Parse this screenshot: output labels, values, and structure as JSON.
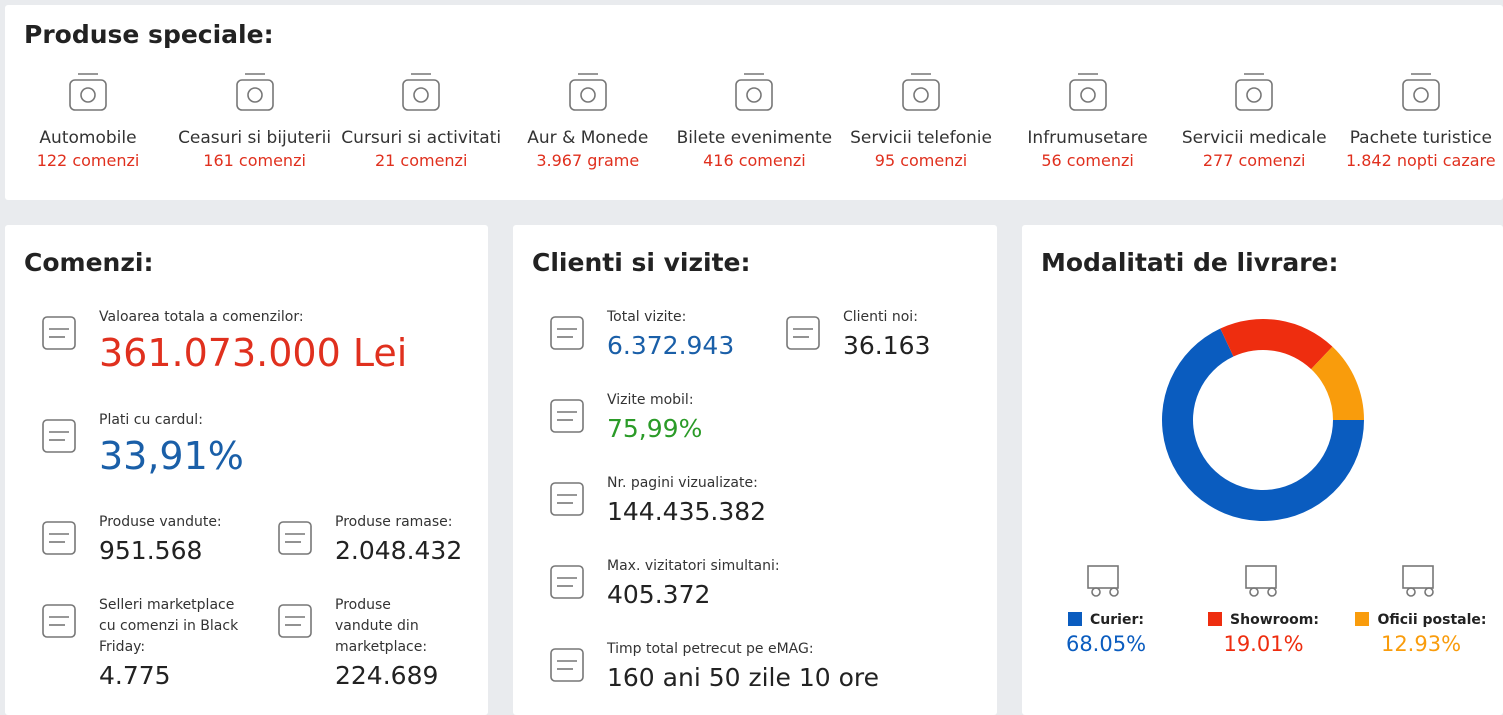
{
  "special_products": {
    "title": "Produse speciale:",
    "items": [
      {
        "name": "Automobile",
        "count": "122 comenzi"
      },
      {
        "name": "Ceasuri si bijuterii",
        "count": "161 comenzi"
      },
      {
        "name": "Cursuri si activitati",
        "count": "21 comenzi"
      },
      {
        "name": "Aur & Monede",
        "count": "3.967 grame"
      },
      {
        "name": "Bilete evenimente",
        "count": "416 comenzi"
      },
      {
        "name": "Servicii telefonie",
        "count": "95 comenzi"
      },
      {
        "name": "Infrumusetare",
        "count": "56 comenzi"
      },
      {
        "name": "Servicii medicale",
        "count": "277 comenzi"
      },
      {
        "name": "Pachete turistice",
        "count": "1.842 nopti cazare"
      }
    ]
  },
  "orders": {
    "title": "Comenzi:",
    "stats": [
      {
        "label": "Valoarea totala a comenzilor:",
        "value": "361.073.000 Lei"
      },
      {
        "label": "Plati cu cardul:",
        "value": "33,91%"
      },
      {
        "label": "Produse vandute:",
        "value": "951.568"
      },
      {
        "label": "Produse ramase:",
        "value": "2.048.432"
      },
      {
        "label": "Selleri marketplace cu comenzi in Black Friday:",
        "value": "4.775"
      },
      {
        "label": "Produse vandute din marketplace:",
        "value": "224.689"
      }
    ]
  },
  "clients": {
    "title": "Clienti si vizite:",
    "stats": [
      {
        "label": "Total vizite:",
        "value": "6.372.943"
      },
      {
        "label": "Clienti noi:",
        "value": "36.163"
      },
      {
        "label": "Vizite mobil:",
        "value": "75,99%"
      },
      {
        "label": "Nr. pagini vizualizate:",
        "value": "144.435.382"
      },
      {
        "label": "Max. vizitatori simultani:",
        "value": "405.372"
      },
      {
        "label": "Timp total petrecut pe eMAG:",
        "value": "160 ani 50 zile 10 ore"
      }
    ]
  },
  "delivery": {
    "title": "Modalitati de livrare:",
    "type": "donut",
    "categories": [
      "Curier:",
      "Showroom:",
      "Oficii postale:"
    ],
    "colors": [
      "#0a5cbf",
      "#ee2d0f",
      "#f99c0c"
    ],
    "values": [
      68.05,
      19.01,
      12.93
    ],
    "value_labels": [
      "68.05%",
      "19.01%",
      "12.93%"
    ]
  }
}
